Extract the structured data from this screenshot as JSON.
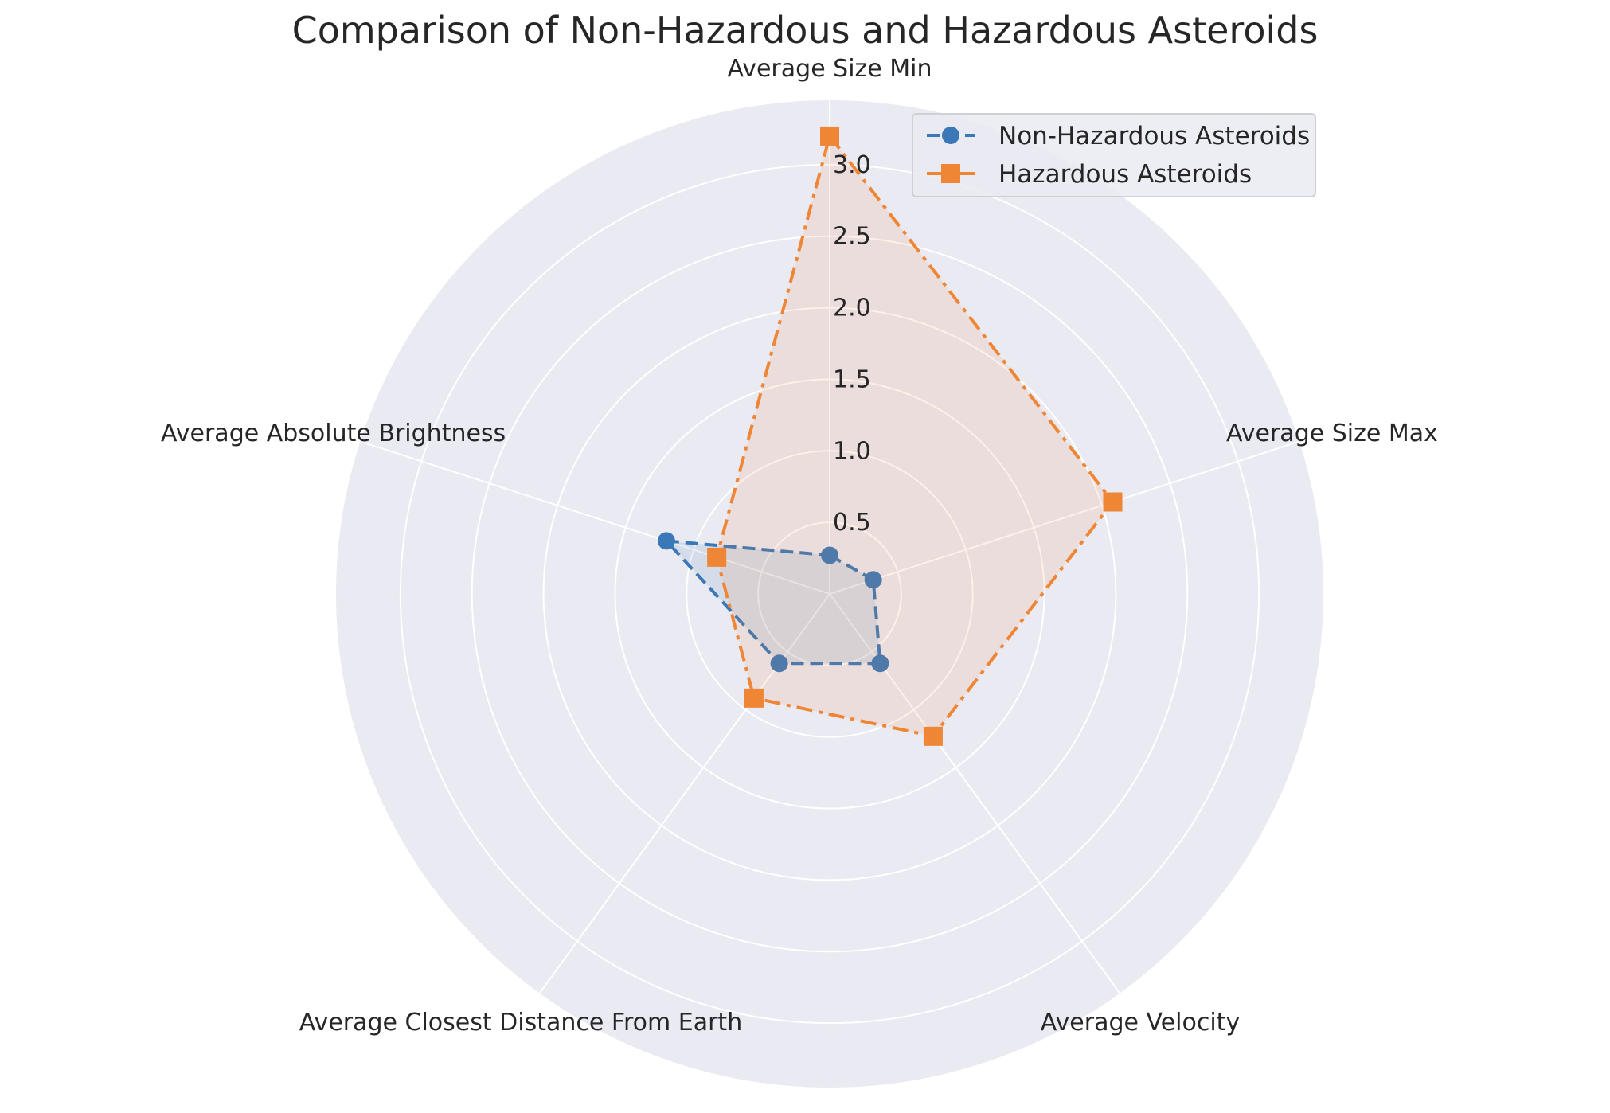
{
  "chart_data": {
    "type": "radar",
    "title": "Comparison of Non-Hazardous and Hazardous Asteroids",
    "categories": [
      "Average Size Min",
      "Average Size Max",
      "Average Velocity",
      "Average Closest Distance From Earth",
      "Average Absolute Brightness"
    ],
    "rlim": [
      0,
      3.45
    ],
    "rticks": [
      0.5,
      1.0,
      1.5,
      2.0,
      2.5,
      3.0
    ],
    "rtick_labels": [
      "0.5",
      "1.0",
      "1.5",
      "2.0",
      "2.5",
      "3.0"
    ],
    "grid": true,
    "legend_position": "top-right",
    "background_color": "#eaeaf2",
    "series": [
      {
        "name": "Non-Hazardous Asteroids",
        "values": [
          0.27,
          0.32,
          0.6,
          0.6,
          1.2
        ],
        "color": "#3a78b8",
        "line_style": "dashed",
        "marker": "circle"
      },
      {
        "name": "Hazardous Asteroids",
        "values": [
          3.2,
          2.08,
          1.23,
          0.9,
          0.83
        ],
        "color": "#ef8636",
        "line_style": "dashdot",
        "marker": "square"
      }
    ]
  }
}
